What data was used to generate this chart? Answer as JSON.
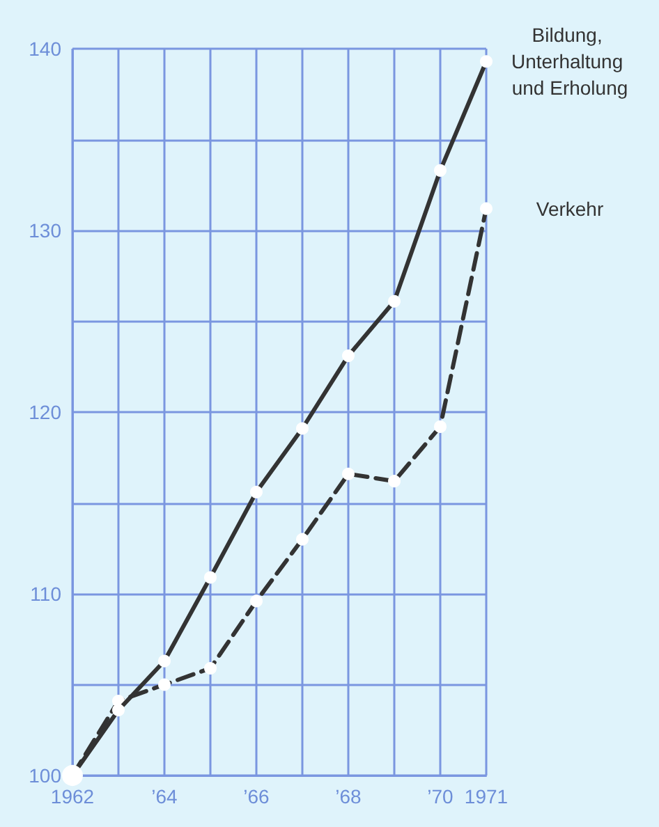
{
  "chart_data": {
    "type": "line",
    "x": [
      1962,
      1963,
      1964,
      1965,
      1966,
      1967,
      1968,
      1969,
      1970,
      1971
    ],
    "series": [
      {
        "name": "Bildung, Unterhaltung und Erholung",
        "color": "#333333",
        "line_style": "solid",
        "values": [
          100,
          103.6,
          106.3,
          110.9,
          115.6,
          119.1,
          123.1,
          126.1,
          133.3,
          139.3
        ]
      },
      {
        "name": "Verkehr",
        "color": "#333333",
        "line_style": "dashed",
        "values": [
          100,
          104.1,
          105.0,
          105.9,
          109.6,
          113.0,
          116.6,
          116.2,
          119.2,
          131.2
        ]
      }
    ],
    "xlim": [
      1962,
      1971
    ],
    "xticks": [
      {
        "value": 1962,
        "label": "1962"
      },
      {
        "value": 1963,
        "label": null
      },
      {
        "value": 1964,
        "label": "’64"
      },
      {
        "value": 1965,
        "label": null
      },
      {
        "value": 1966,
        "label": "’66"
      },
      {
        "value": 1967,
        "label": null
      },
      {
        "value": 1968,
        "label": "’68"
      },
      {
        "value": 1969,
        "label": null
      },
      {
        "value": 1970,
        "label": "’70"
      },
      {
        "value": 1971,
        "label": "1971"
      }
    ],
    "ylim": [
      100,
      140
    ],
    "yticks": [
      100,
      {
        "value": 105,
        "label": null
      },
      110,
      {
        "value": 115,
        "label": null
      },
      120,
      {
        "value": 125,
        "label": null
      },
      130,
      {
        "value": 135,
        "label": null
      },
      140
    ],
    "grid": true,
    "legend": false,
    "marker": "circle"
  }
}
